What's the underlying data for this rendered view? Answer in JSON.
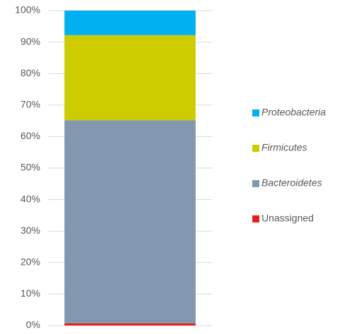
{
  "chart_data": {
    "type": "stacked_bar",
    "categories": [
      null
    ],
    "series": [
      {
        "name": "Unassigned",
        "color": "#e3201b",
        "values": [
          0.7
        ],
        "italic": false
      },
      {
        "name": "Bacteroidetes",
        "color": "#8497b0",
        "values": [
          64.5
        ],
        "italic": true
      },
      {
        "name": "Firmicutes",
        "color": "#cccc00",
        "values": [
          27.0
        ],
        "italic": true
      },
      {
        "name": "Proteobacteria",
        "color": "#00b0f0",
        "values": [
          7.8
        ],
        "italic": true
      }
    ],
    "ylim": [
      0,
      100
    ],
    "yticks": [
      {
        "value": 0,
        "label": "0%"
      },
      {
        "value": 10,
        "label": "10%"
      },
      {
        "value": 20,
        "label": "20%"
      },
      {
        "value": 30,
        "label": "30%"
      },
      {
        "value": 40,
        "label": "40%"
      },
      {
        "value": 50,
        "label": "50%"
      },
      {
        "value": 60,
        "label": "60%"
      },
      {
        "value": 70,
        "label": "70%"
      },
      {
        "value": 80,
        "label": "80%"
      },
      {
        "value": 90,
        "label": "90%"
      },
      {
        "value": 100,
        "label": "100%"
      }
    ],
    "grid": true,
    "legend": "right"
  }
}
